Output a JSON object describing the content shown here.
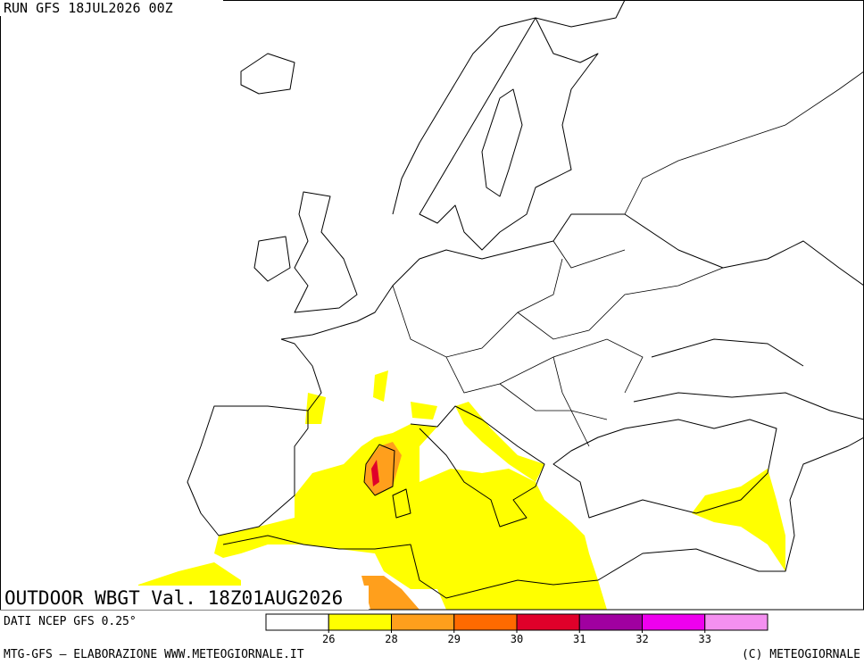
{
  "header": {
    "run": "RUN GFS 18JUL2026 00Z"
  },
  "title": "OUTDOOR WBGT Val. 18Z01AUG2026",
  "source": "DATI NCEP GFS 0.25°",
  "credit": "MTG-GFS — ELABORAZIONE WWW.METEOGIORNALE.IT",
  "copyright": "(C) METEOGIORNALE",
  "legend": {
    "colors": [
      "#ffffff",
      "#ffff00",
      "#ff9f1c",
      "#ff6a00",
      "#e0002a",
      "#a000a0",
      "#ee00ee",
      "#f490f0"
    ],
    "ticks": [
      26,
      28,
      29,
      30,
      31,
      32,
      33
    ]
  }
}
